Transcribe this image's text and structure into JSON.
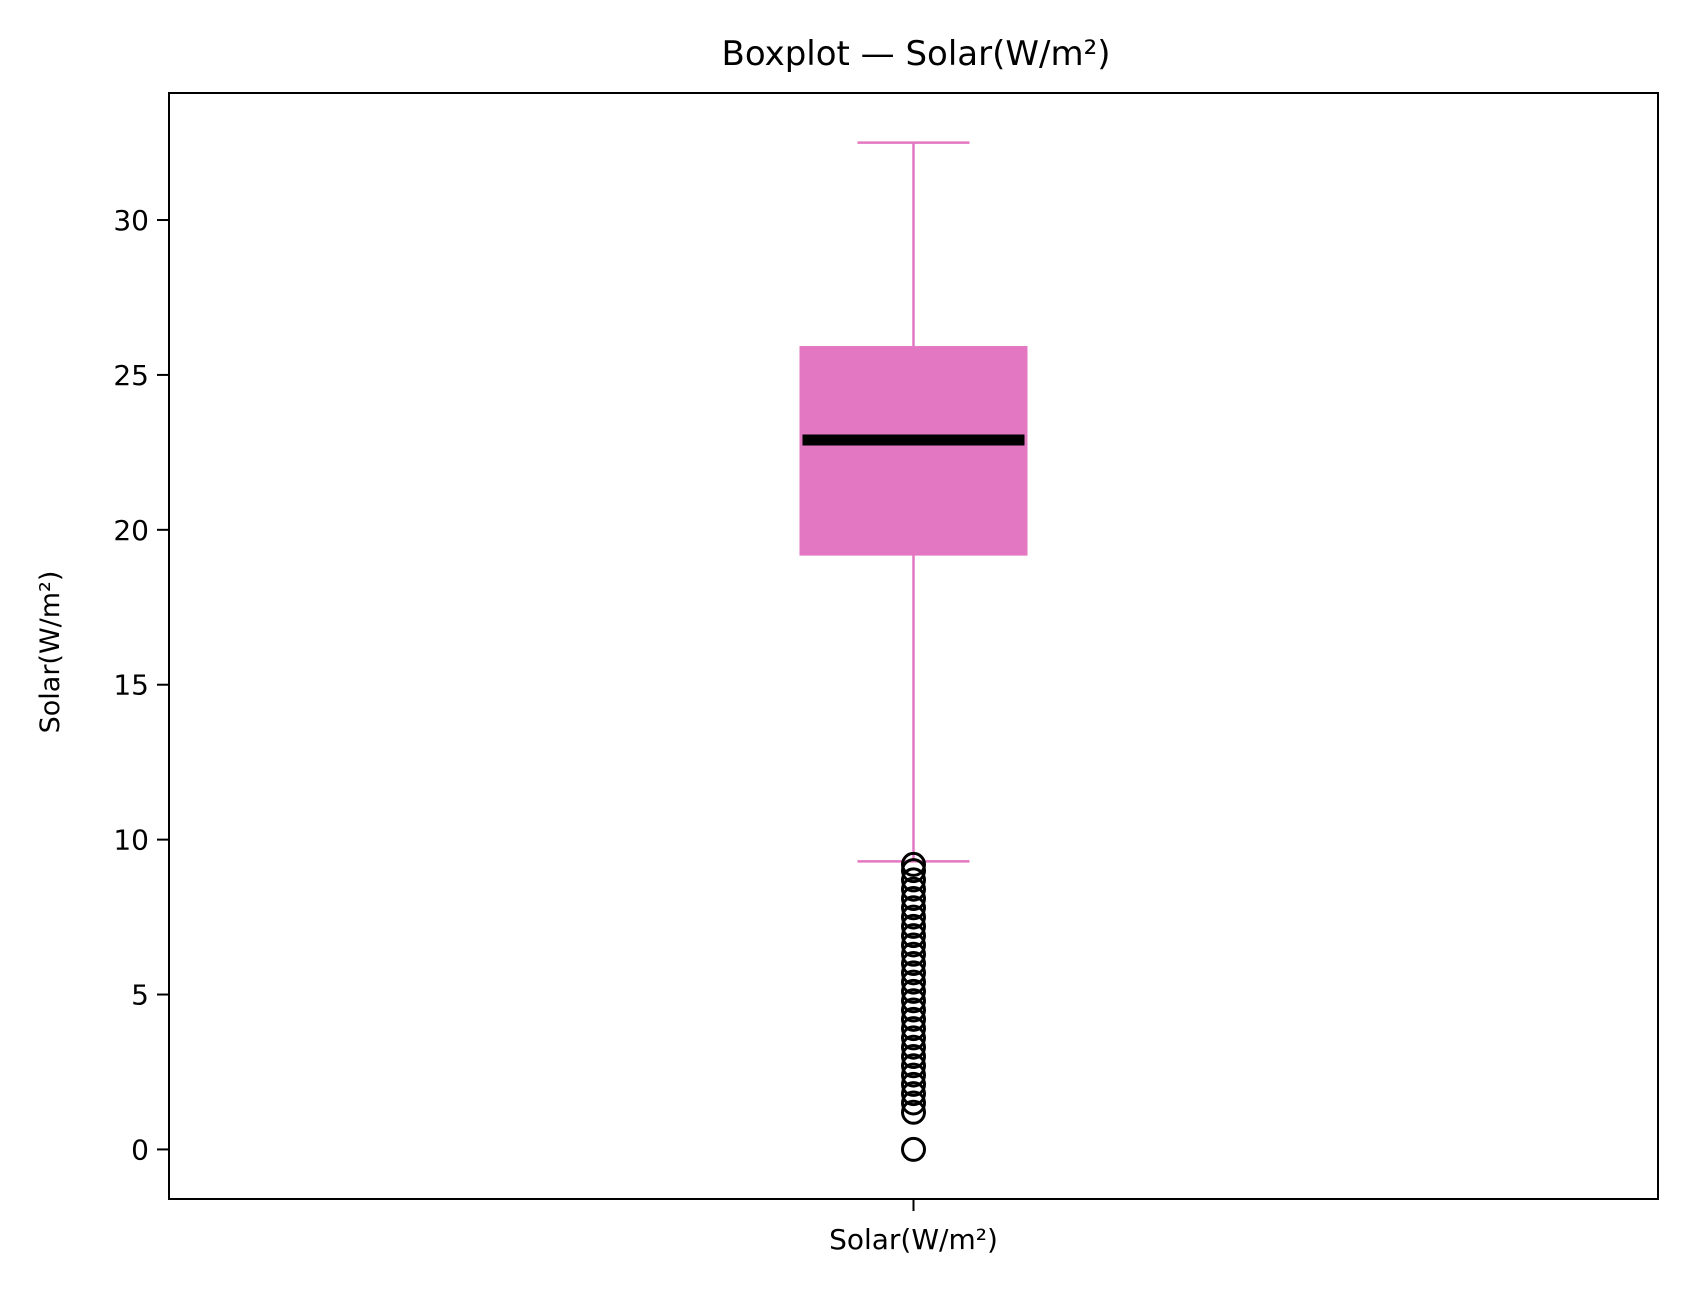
{
  "chart_data": {
    "type": "boxplot",
    "title": "Boxplot — Solar(W/m²)",
    "xlabel": "",
    "ylabel": "Solar(W/m²)",
    "categories": [
      "Solar(W/m²)"
    ],
    "ylim": [
      -1.6,
      34.1
    ],
    "yticks": [
      0,
      5,
      10,
      15,
      20,
      25,
      30
    ],
    "grid": false,
    "colors": {
      "box": "#e377c2",
      "whisker": "#e377c2",
      "median": "#000000",
      "outlier": "#000000"
    },
    "boxes": [
      {
        "name": "Solar(W/m²)",
        "q1": 19.2,
        "median": 22.9,
        "q3": 25.9,
        "whisker_low": 9.3,
        "whisker_high": 32.5,
        "outliers": [
          0.0,
          1.2,
          1.5,
          1.8,
          2.1,
          2.4,
          2.7,
          3.0,
          3.3,
          3.6,
          3.9,
          4.2,
          4.5,
          4.8,
          5.1,
          5.4,
          5.7,
          6.0,
          6.3,
          6.6,
          6.9,
          7.2,
          7.5,
          7.8,
          8.1,
          8.4,
          8.7,
          9.0,
          9.2
        ]
      }
    ]
  }
}
